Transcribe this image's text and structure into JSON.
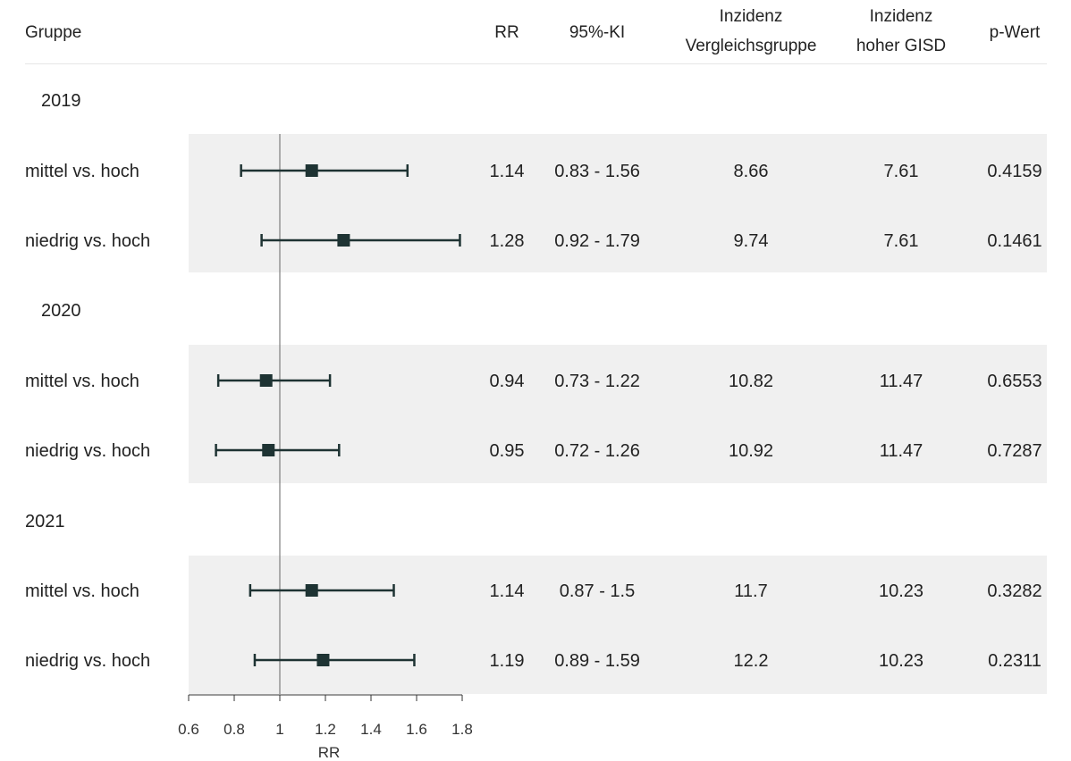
{
  "header": {
    "group": "Gruppe",
    "rr": "RR",
    "ci": "95%-KI",
    "inc_comp_1": "Inzidenz",
    "inc_comp_2": "Vergleichsgruppe",
    "inc_high_1": "Inzidenz",
    "inc_high_2": "hoher GISD",
    "p": "p-Wert"
  },
  "chart_data": {
    "type": "forest",
    "xlabel": "RR",
    "xlim": [
      0.6,
      1.8
    ],
    "xticks": [
      0.6,
      0.8,
      1,
      1.2,
      1.4,
      1.6,
      1.8
    ],
    "xtick_labels": [
      "0.6",
      "0.8",
      "1",
      "1.2",
      "1.4",
      "1.6",
      "1.8"
    ],
    "reference_line": 1,
    "colors": {
      "marker": "#1e3333",
      "band": "#f0f0f0",
      "reference": "#666666"
    },
    "groups": [
      {
        "label": "2019",
        "rows": [
          {
            "label": "mittel vs. hoch",
            "rr": 1.14,
            "lower": 0.83,
            "upper": 1.56,
            "rr_text": "1.14",
            "ci_text": "0.83 - 1.56",
            "inc_comp": "8.66",
            "inc_high": "7.61",
            "p": "0.4159"
          },
          {
            "label": "niedrig vs. hoch",
            "rr": 1.28,
            "lower": 0.92,
            "upper": 1.79,
            "rr_text": "1.28",
            "ci_text": "0.92 - 1.79",
            "inc_comp": "9.74",
            "inc_high": "7.61",
            "p": "0.1461"
          }
        ]
      },
      {
        "label": "2020",
        "rows": [
          {
            "label": "mittel vs. hoch",
            "rr": 0.94,
            "lower": 0.73,
            "upper": 1.22,
            "rr_text": "0.94",
            "ci_text": "0.73 - 1.22",
            "inc_comp": "10.82",
            "inc_high": "11.47",
            "p": "0.6553"
          },
          {
            "label": "niedrig vs. hoch",
            "rr": 0.95,
            "lower": 0.72,
            "upper": 1.26,
            "rr_text": "0.95",
            "ci_text": "0.72 - 1.26",
            "inc_comp": "10.92",
            "inc_high": "11.47",
            "p": "0.7287"
          }
        ]
      },
      {
        "label": "2021",
        "rows": [
          {
            "label": "mittel vs. hoch",
            "rr": 1.14,
            "lower": 0.87,
            "upper": 1.5,
            "rr_text": "1.14",
            "ci_text": "0.87 - 1.5",
            "inc_comp": "11.7",
            "inc_high": "10.23",
            "p": "0.3282"
          },
          {
            "label": "niedrig vs. hoch",
            "rr": 1.19,
            "lower": 0.89,
            "upper": 1.59,
            "rr_text": "1.19",
            "ci_text": "0.89 - 1.59",
            "inc_comp": "12.2",
            "inc_high": "10.23",
            "p": "0.2311"
          }
        ]
      }
    ]
  }
}
